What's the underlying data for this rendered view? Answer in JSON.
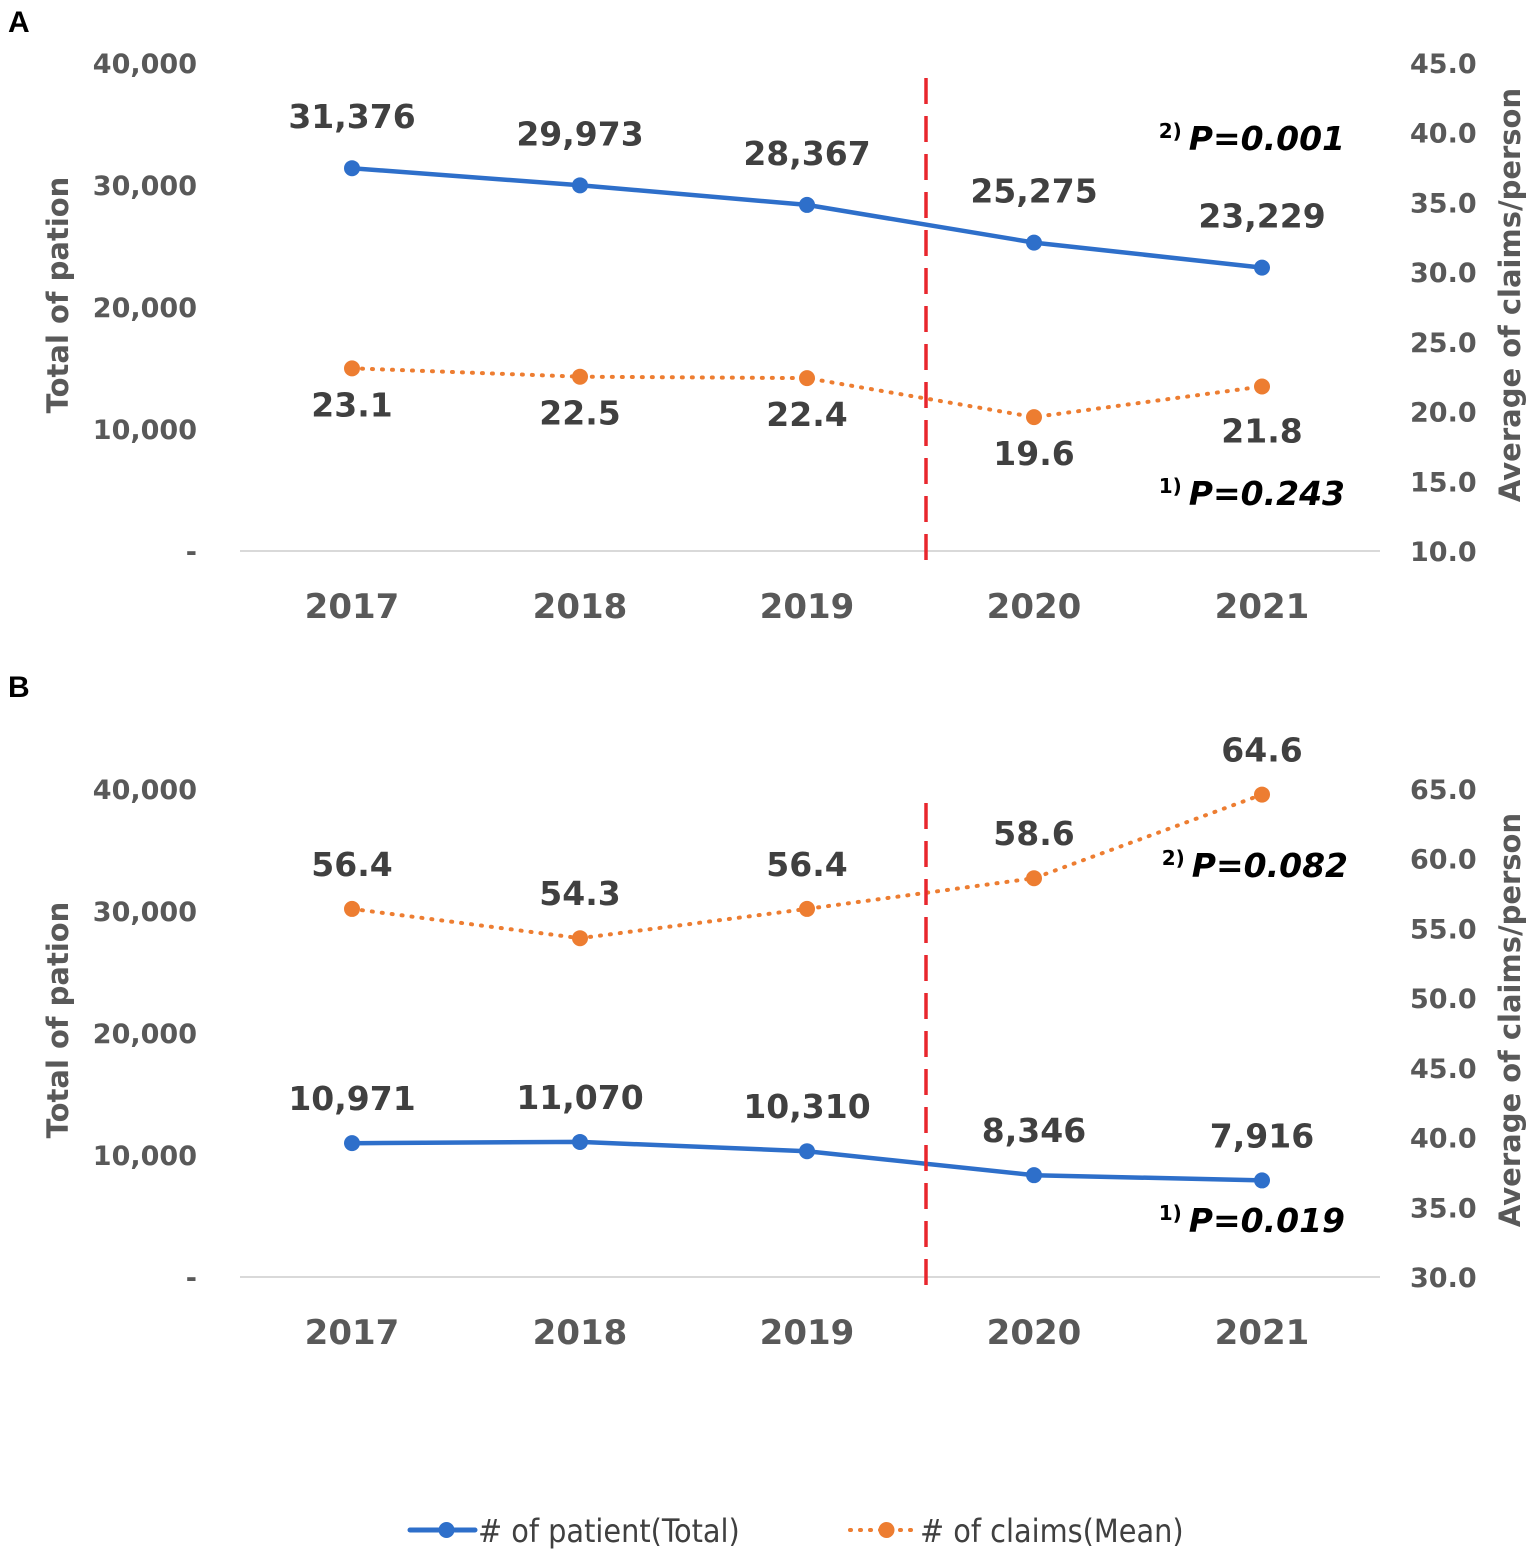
{
  "chart_data": [
    {
      "panel": "A",
      "type": "line",
      "categories": [
        "2017",
        "2018",
        "2019",
        "2020",
        "2021"
      ],
      "y_left": {
        "label": "Total of pation",
        "range": [
          0,
          40000
        ],
        "ticks": [
          "-",
          "10,000",
          "20,000",
          "30,000",
          "40,000"
        ]
      },
      "y_right": {
        "label": "Average of claims/person",
        "range": [
          10,
          45
        ],
        "ticks": [
          "10.0",
          "15.0",
          "20.0",
          "25.0",
          "30.0",
          "35.0",
          "40.0",
          "45.0"
        ]
      },
      "series": [
        {
          "name": "# of patient(Total)",
          "axis": "left",
          "values": [
            31376,
            29973,
            28367,
            25275,
            23229
          ],
          "labels": [
            "31,376",
            "29,973",
            "28,367",
            "25,275",
            "23,229"
          ],
          "color": "#2E6FCA",
          "style": "solid"
        },
        {
          "name": "# of claims(Mean)",
          "axis": "right",
          "values": [
            23.1,
            22.5,
            22.4,
            19.6,
            21.8
          ],
          "labels": [
            "23.1",
            "22.5",
            "22.4",
            "19.6",
            "21.8"
          ],
          "color": "#ED7D31",
          "style": "dotted"
        }
      ],
      "annotations": [
        {
          "sup": "2)",
          "text": "P=0.001"
        },
        {
          "sup": "1)",
          "text": "P=0.243"
        }
      ],
      "divider": {
        "color": "#E8262D",
        "after_category": "2019"
      }
    },
    {
      "panel": "B",
      "type": "line",
      "categories": [
        "2017",
        "2018",
        "2019",
        "2020",
        "2021"
      ],
      "y_left": {
        "label": "Total of pation",
        "range": [
          0,
          40000
        ],
        "ticks": [
          "-",
          "10,000",
          "20,000",
          "30,000",
          "40,000"
        ]
      },
      "y_right": {
        "label": "Average of claims/person",
        "range": [
          30,
          65
        ],
        "ticks": [
          "30.0",
          "35.0",
          "40.0",
          "45.0",
          "50.0",
          "55.0",
          "60.0",
          "65.0"
        ]
      },
      "series": [
        {
          "name": "# of patient(Total)",
          "axis": "left",
          "values": [
            10971,
            11070,
            10310,
            8346,
            7916
          ],
          "labels": [
            "10,971",
            "11,070",
            "10,310",
            "8,346",
            "7,916"
          ],
          "color": "#2E6FCA",
          "style": "solid"
        },
        {
          "name": "# of claims(Mean)",
          "axis": "right",
          "values": [
            56.4,
            54.3,
            56.4,
            58.6,
            64.6
          ],
          "labels": [
            "56.4",
            "54.3",
            "56.4",
            "58.6",
            "64.6"
          ],
          "color": "#ED7D31",
          "style": "dotted"
        }
      ],
      "annotations": [
        {
          "sup": "2)",
          "text": "P=0.082"
        },
        {
          "sup": "1)",
          "text": "P=0.019"
        }
      ],
      "divider": {
        "color": "#E8262D",
        "after_category": "2019"
      }
    }
  ],
  "legend": [
    {
      "label": "# of patient(Total)",
      "color": "#2E6FCA",
      "style": "solid"
    },
    {
      "label": "# of claims(Mean)",
      "color": "#ED7D31",
      "style": "dotted"
    }
  ]
}
